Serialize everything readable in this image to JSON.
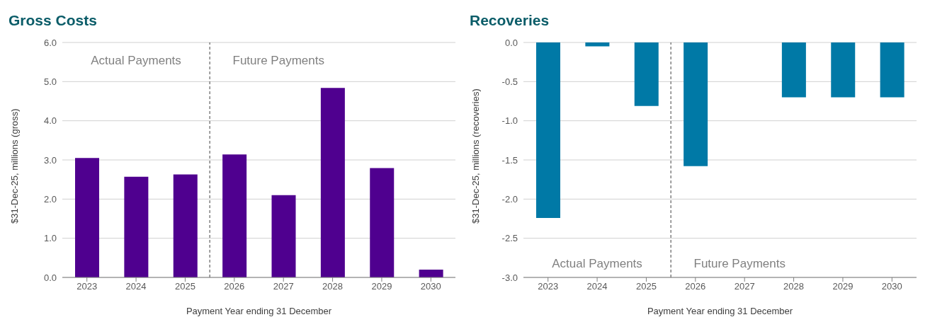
{
  "chart_data": [
    {
      "type": "bar",
      "title": "Gross Costs",
      "xlabel": "Payment Year ending 31 December",
      "ylabel": "$31-Dec-25, millions (gross)",
      "x": [
        2023,
        2024,
        2025,
        2026,
        2027,
        2028,
        2029,
        2030
      ],
      "values": [
        3.05,
        2.57,
        2.63,
        3.14,
        2.1,
        4.84,
        2.79,
        0.2
      ],
      "color": "#4f008f",
      "xlim": [
        2022.5,
        2030.5
      ],
      "xticks": [
        2023,
        2024,
        2025,
        2026,
        2027,
        2028,
        2029,
        2030
      ],
      "ylim": [
        0,
        6
      ],
      "yticks": [
        {
          "value": 0,
          "label": "0.0"
        },
        {
          "value": 1,
          "label": "1.0"
        },
        {
          "value": 2,
          "label": "2.0"
        },
        {
          "value": 3,
          "label": "3.0"
        },
        {
          "value": 4,
          "label": "4.0"
        },
        {
          "value": 5,
          "label": "5.0"
        },
        {
          "value": 6,
          "label": "6.0"
        }
      ],
      "grid": "y",
      "ref_lines": [
        {
          "axis": "x",
          "value": 2025.5,
          "color": "#404040",
          "line_style": "dashed"
        }
      ],
      "annotations": [
        "Actual Payments",
        "Future Payments"
      ]
    },
    {
      "type": "bar",
      "title": "Recoveries",
      "xlabel": "Payment Year ending 31 December",
      "ylabel": "$31-Dec-25, millions (recoveries)",
      "x": [
        2023,
        2024,
        2025,
        2026,
        2027,
        2028,
        2029,
        2030
      ],
      "values": [
        -2.24,
        -0.05,
        -0.81,
        -1.58,
        0,
        -0.7,
        -0.7,
        -0.7
      ],
      "color": "#0079a6",
      "xlim": [
        2022.5,
        2030.5
      ],
      "xticks": [
        2023,
        2024,
        2025,
        2026,
        2027,
        2028,
        2029,
        2030
      ],
      "ylim": [
        -3,
        0
      ],
      "yticks": [
        {
          "value": -3,
          "label": "-3.0"
        },
        {
          "value": -2.5,
          "label": "-2.5"
        },
        {
          "value": -2,
          "label": "-2.0"
        },
        {
          "value": -1.5,
          "label": "-1.5"
        },
        {
          "value": -1,
          "label": "-1.0"
        },
        {
          "value": -0.5,
          "label": "-0.5"
        },
        {
          "value": 0,
          "label": "0.0"
        }
      ],
      "grid": "y",
      "ref_lines": [
        {
          "axis": "x",
          "value": 2025.5,
          "color": "#404040",
          "line_style": "dashed"
        }
      ],
      "annotations": [
        "Actual Payments",
        "Future Payments"
      ]
    }
  ]
}
